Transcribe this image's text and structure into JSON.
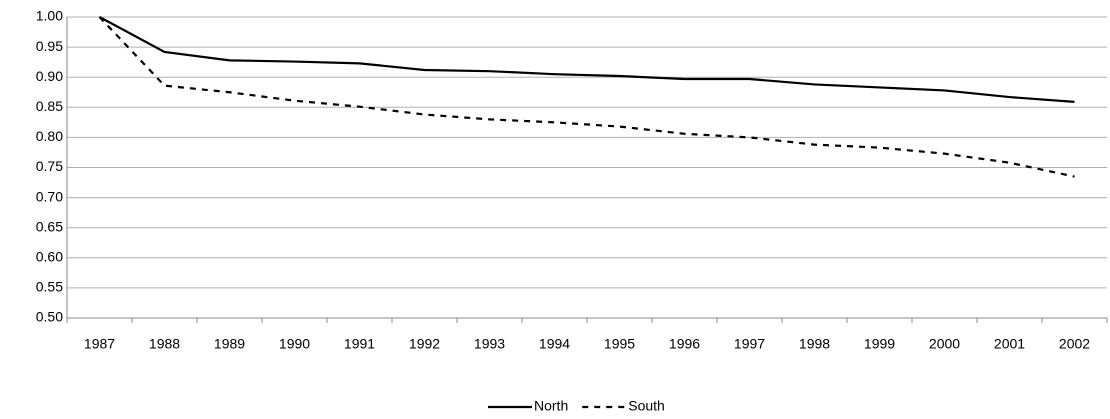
{
  "chart_data": {
    "type": "line",
    "categories": [
      "1987",
      "1988",
      "1989",
      "1990",
      "1991",
      "1992",
      "1993",
      "1994",
      "1995",
      "1996",
      "1997",
      "1998",
      "1999",
      "2000",
      "2001",
      "2002"
    ],
    "series": [
      {
        "name": "North",
        "color": "#000000",
        "line_style": "solid",
        "values": [
          1.0,
          0.942,
          0.928,
          0.926,
          0.923,
          0.912,
          0.91,
          0.905,
          0.902,
          0.897,
          0.897,
          0.888,
          0.883,
          0.878,
          0.867,
          0.859
        ]
      },
      {
        "name": "South",
        "color": "#000000",
        "line_style": "dashed",
        "values": [
          1.0,
          0.886,
          0.875,
          0.861,
          0.851,
          0.838,
          0.83,
          0.825,
          0.818,
          0.806,
          0.8,
          0.788,
          0.783,
          0.773,
          0.758,
          0.735
        ]
      }
    ],
    "ylim": [
      0.5,
      1.0
    ],
    "yticks": [
      {
        "value": 0.5,
        "label": "0.50"
      },
      0.55,
      {
        "value": 0.6,
        "label": "0.60"
      },
      0.65,
      {
        "value": 0.7,
        "label": "0.70"
      },
      0.75,
      {
        "value": 0.8,
        "label": "0.80"
      },
      0.85,
      {
        "value": 0.9,
        "label": "0.90"
      },
      0.95,
      {
        "value": 1.0,
        "label": "1.00"
      }
    ],
    "grid": true,
    "legend": "bottom"
  }
}
